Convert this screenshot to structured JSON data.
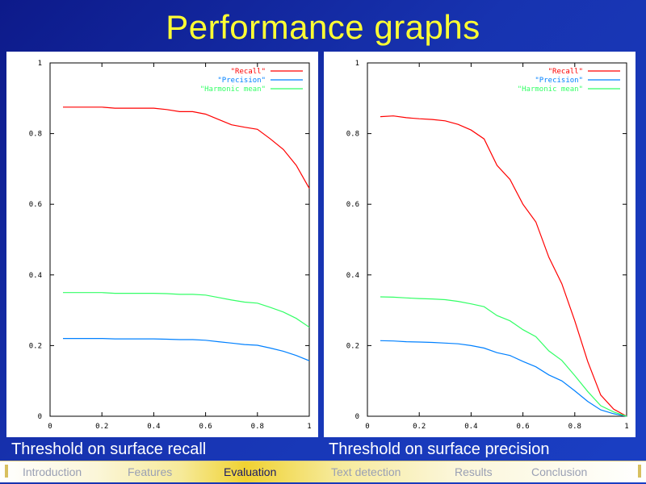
{
  "title": "Performance graphs",
  "captions": {
    "left": "Threshold on surface recall",
    "right": "Threshold on surface precision"
  },
  "nav": {
    "items": [
      {
        "label": "Introduction",
        "active": false
      },
      {
        "label": "Features",
        "active": false
      },
      {
        "label": "Evaluation",
        "active": true
      },
      {
        "label": "Text detection",
        "active": false
      },
      {
        "label": "Results",
        "active": false
      },
      {
        "label": "Conclusion",
        "active": false
      }
    ]
  },
  "colors": {
    "title": "#ffff33",
    "recall": "#ff0000",
    "precision": "#0080ff",
    "harmonic": "#33ff66"
  },
  "chart_data": [
    {
      "type": "line",
      "xlim": [
        0,
        1
      ],
      "ylim": [
        0,
        1
      ],
      "xticks": [
        "0",
        "0.2",
        "0.4",
        "0.6",
        "0.8",
        "1"
      ],
      "yticks": [
        "0",
        "0.2",
        "0.4",
        "0.6",
        "0.8",
        "1"
      ],
      "legend_position": "top-right",
      "grid": false,
      "series": [
        {
          "name": "\"Recall\"",
          "color": "#ff0000",
          "x": [
            0.05,
            0.1,
            0.15,
            0.2,
            0.25,
            0.3,
            0.35,
            0.4,
            0.45,
            0.5,
            0.55,
            0.6,
            0.65,
            0.7,
            0.75,
            0.8,
            0.85,
            0.9,
            0.95,
            1.0
          ],
          "y": [
            0.875,
            0.875,
            0.875,
            0.875,
            0.872,
            0.872,
            0.872,
            0.872,
            0.868,
            0.862,
            0.862,
            0.855,
            0.84,
            0.825,
            0.818,
            0.812,
            0.785,
            0.755,
            0.71,
            0.645
          ]
        },
        {
          "name": "\"Precision\"",
          "color": "#0080ff",
          "x": [
            0.05,
            0.1,
            0.15,
            0.2,
            0.25,
            0.3,
            0.35,
            0.4,
            0.45,
            0.5,
            0.55,
            0.6,
            0.65,
            0.7,
            0.75,
            0.8,
            0.85,
            0.9,
            0.95,
            1.0
          ],
          "y": [
            0.22,
            0.22,
            0.22,
            0.22,
            0.219,
            0.219,
            0.219,
            0.219,
            0.218,
            0.217,
            0.217,
            0.215,
            0.211,
            0.207,
            0.203,
            0.201,
            0.193,
            0.184,
            0.172,
            0.157
          ]
        },
        {
          "name": "\"Harmonic mean\"",
          "color": "#33ff66",
          "x": [
            0.05,
            0.1,
            0.15,
            0.2,
            0.25,
            0.3,
            0.35,
            0.4,
            0.45,
            0.5,
            0.55,
            0.6,
            0.65,
            0.7,
            0.75,
            0.8,
            0.85,
            0.9,
            0.95,
            1.0
          ],
          "y": [
            0.35,
            0.35,
            0.35,
            0.35,
            0.348,
            0.348,
            0.348,
            0.348,
            0.347,
            0.345,
            0.345,
            0.343,
            0.336,
            0.329,
            0.323,
            0.32,
            0.308,
            0.295,
            0.277,
            0.252
          ]
        }
      ]
    },
    {
      "type": "line",
      "xlim": [
        0,
        1
      ],
      "ylim": [
        0,
        1
      ],
      "xticks": [
        "0",
        "0.2",
        "0.4",
        "0.6",
        "0.8",
        "1"
      ],
      "yticks": [
        "0",
        "0.2",
        "0.4",
        "0.6",
        "0.8",
        "1"
      ],
      "legend_position": "top-right",
      "grid": false,
      "series": [
        {
          "name": "\"Recall\"",
          "color": "#ff0000",
          "x": [
            0.05,
            0.1,
            0.15,
            0.2,
            0.25,
            0.3,
            0.35,
            0.4,
            0.45,
            0.5,
            0.55,
            0.6,
            0.65,
            0.7,
            0.75,
            0.8,
            0.85,
            0.9,
            0.95,
            1.0
          ],
          "y": [
            0.848,
            0.85,
            0.845,
            0.842,
            0.84,
            0.836,
            0.826,
            0.81,
            0.785,
            0.71,
            0.67,
            0.6,
            0.55,
            0.45,
            0.375,
            0.27,
            0.155,
            0.06,
            0.02,
            0.0
          ]
        },
        {
          "name": "\"Precision\"",
          "color": "#0080ff",
          "x": [
            0.05,
            0.1,
            0.15,
            0.2,
            0.25,
            0.3,
            0.35,
            0.4,
            0.45,
            0.5,
            0.55,
            0.6,
            0.65,
            0.7,
            0.75,
            0.8,
            0.85,
            0.9,
            0.95,
            1.0
          ],
          "y": [
            0.214,
            0.213,
            0.211,
            0.21,
            0.209,
            0.207,
            0.205,
            0.2,
            0.193,
            0.18,
            0.172,
            0.155,
            0.14,
            0.117,
            0.1,
            0.072,
            0.042,
            0.018,
            0.007,
            0.0
          ]
        },
        {
          "name": "\"Harmonic mean\"",
          "color": "#33ff66",
          "x": [
            0.05,
            0.1,
            0.15,
            0.2,
            0.25,
            0.3,
            0.35,
            0.4,
            0.45,
            0.5,
            0.55,
            0.6,
            0.65,
            0.7,
            0.75,
            0.8,
            0.85,
            0.9,
            0.95,
            1.0
          ],
          "y": [
            0.338,
            0.337,
            0.335,
            0.333,
            0.332,
            0.33,
            0.325,
            0.318,
            0.31,
            0.285,
            0.27,
            0.245,
            0.225,
            0.185,
            0.158,
            0.115,
            0.07,
            0.03,
            0.012,
            0.0
          ]
        }
      ]
    }
  ]
}
